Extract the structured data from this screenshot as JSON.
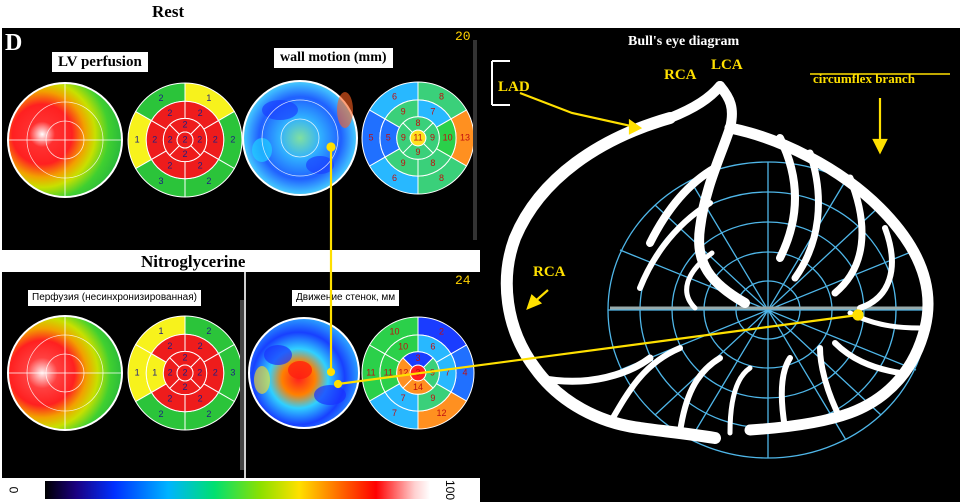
{
  "figure": {
    "panel_letter": "D",
    "rest_title": "Rest",
    "nitro_title": "Nitroglycerine",
    "rest_frame_number": "20",
    "nitro_frame_number": "24",
    "rest_labels": {
      "perfusion": "LV perfusion",
      "wall_motion": "wall motion (mm)"
    },
    "nitro_labels": {
      "perfusion": "Перфузия (несинхронизированная)",
      "wall_motion": "Движение стенок, мм"
    },
    "colorbar": {
      "min": "0",
      "max": "100"
    }
  },
  "rest_segments": {
    "perf_outer": [
      "1",
      "2",
      "2",
      "3",
      "1",
      "2"
    ],
    "perf_mid": [
      "2",
      "2",
      "2",
      "2",
      "2",
      "2"
    ],
    "perf_inner": [
      "2",
      "2",
      "2",
      "2"
    ],
    "perf_apex": "2",
    "wm_outer": [
      "8",
      "13",
      "8",
      "6",
      "5",
      "6"
    ],
    "wm_mid": [
      "7",
      "10",
      "8",
      "9",
      "5",
      "9"
    ],
    "wm_inner": [
      "8",
      "9",
      "9",
      "9"
    ],
    "wm_apex": "11"
  },
  "nitro_segments": {
    "perf_outer": [
      "2",
      "3",
      "2",
      "2",
      "1",
      "1"
    ],
    "perf_mid": [
      "2",
      "2",
      "2",
      "2",
      "1",
      "2"
    ],
    "perf_inner": [
      "2",
      "2",
      "2",
      "2"
    ],
    "perf_apex": "2",
    "wm_outer": [
      "2",
      "4",
      "12",
      "7",
      "11",
      "10"
    ],
    "wm_mid": [
      "6",
      "7",
      "9",
      "7",
      "11",
      "10"
    ],
    "wm_inner": [
      "3",
      "9",
      "14",
      "12"
    ],
    "wm_apex": "3"
  },
  "bulls_eye": {
    "title": "Bull's eye diagram",
    "labels": {
      "lad": "LAD",
      "rca_top": "RCA",
      "lca": "LCA",
      "circumflex": "circumflex branch",
      "rca_left": "RCA"
    }
  },
  "colors": {
    "segment_red": "#ee1c1c",
    "segment_yellow": "#f7f21c",
    "segment_green": "#2bc43a",
    "grid_blue": "#4fb6e8",
    "arrow_yellow": "#ffe000"
  }
}
